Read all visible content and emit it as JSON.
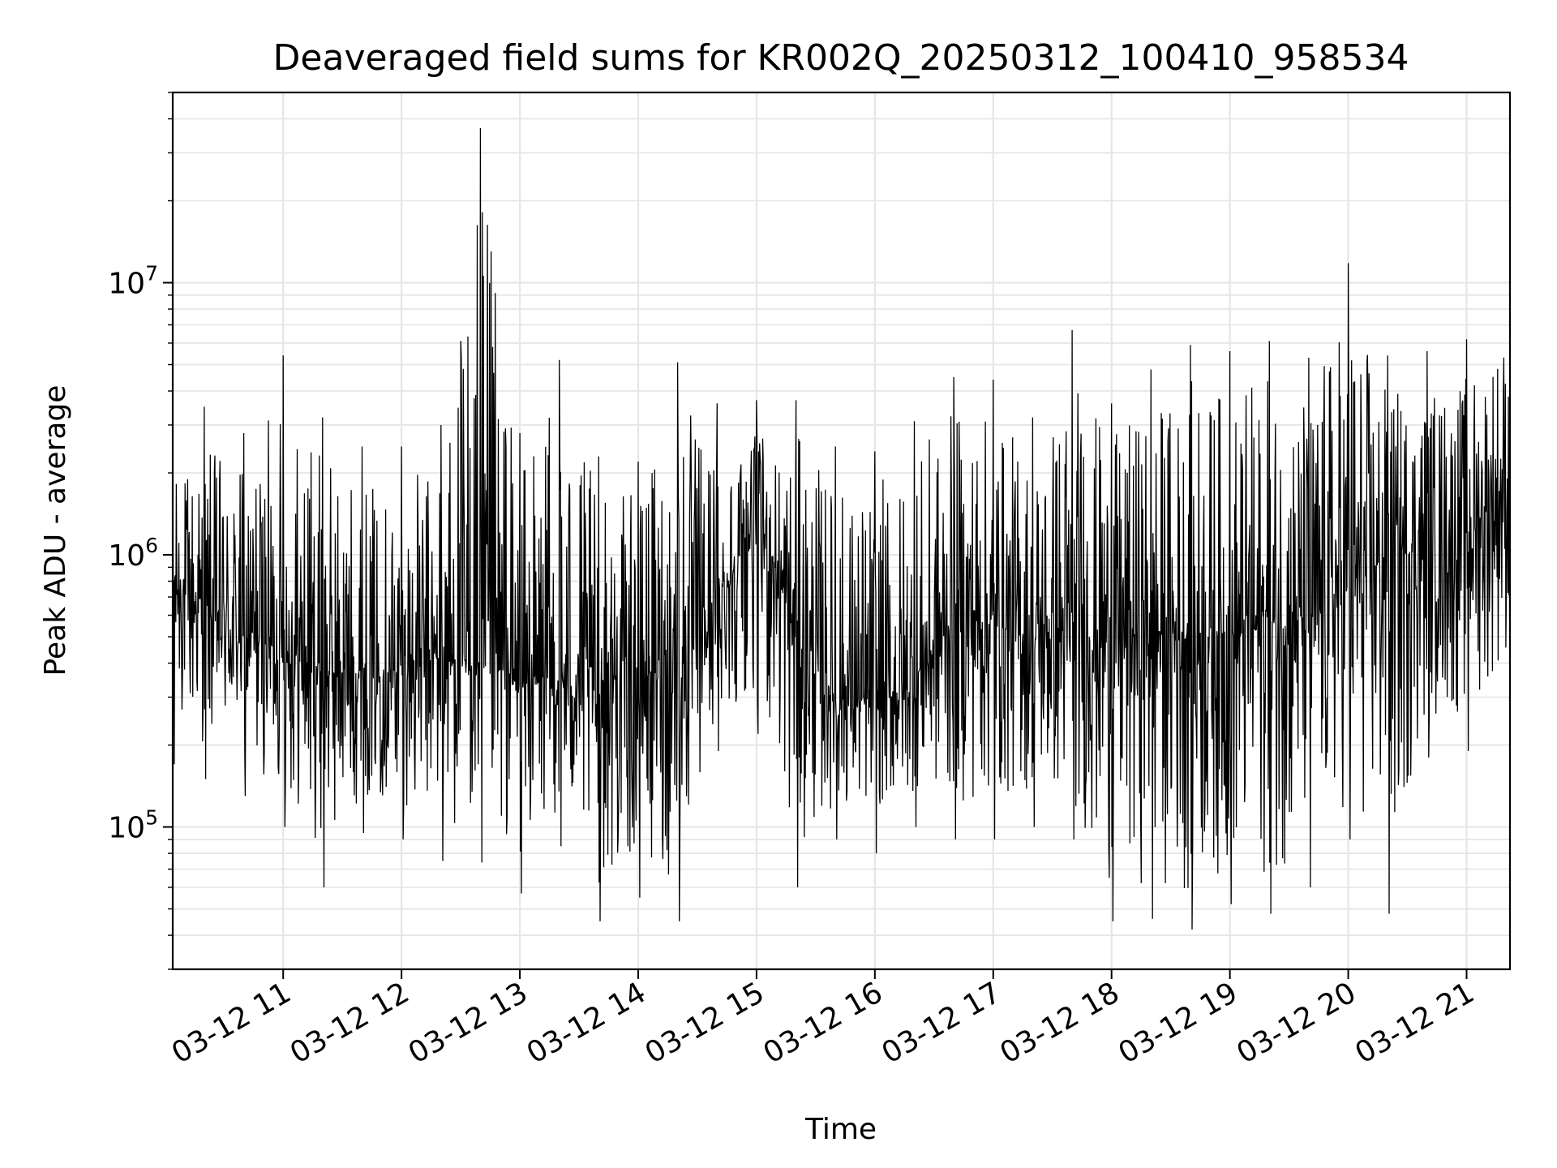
{
  "chart_data": {
    "type": "line",
    "title": "Deaveraged field sums for KR002Q_20250312_100410_958534",
    "xlabel": "Time",
    "ylabel": "Peak ADU - average",
    "y_scale": "log",
    "ylim": [
      30000,
      50000000
    ],
    "xlim": [
      "03-12 10:04",
      "03-12 21:22"
    ],
    "grid": true,
    "legend": "none",
    "line_color": "#000000",
    "x_ticks": [
      "03-12 11",
      "03-12 12",
      "03-12 13",
      "03-12 14",
      "03-12 15",
      "03-12 16",
      "03-12 17",
      "03-12 18",
      "03-12 19",
      "03-12 20",
      "03-12 21"
    ],
    "y_ticks": [
      {
        "base": "10",
        "exp": "5",
        "value": 100000
      },
      {
        "base": "10",
        "exp": "6",
        "value": 1000000
      },
      {
        "base": "10",
        "exp": "7",
        "value": 10000000
      }
    ],
    "series": [
      {
        "x": [
          "03-12 10:04",
          "03-12 10:20",
          "03-12 10:40",
          "03-12 11:00",
          "03-12 11:20",
          "03-12 11:40",
          "03-12 12:00",
          "03-12 12:20",
          "03-12 12:40",
          "03-12 13:00",
          "03-12 13:20",
          "03-12 13:40",
          "03-12 14:00",
          "03-12 14:20",
          "03-12 14:40",
          "03-12 15:00",
          "03-12 15:20",
          "03-12 15:40",
          "03-12 16:00",
          "03-12 16:20",
          "03-12 16:40",
          "03-12 17:00",
          "03-12 17:20",
          "03-12 17:40",
          "03-12 18:00",
          "03-12 18:20",
          "03-12 18:40",
          "03-12 19:00",
          "03-12 19:20",
          "03-12 19:40",
          "03-12 20:00",
          "03-12 20:20",
          "03-12 20:40",
          "03-12 21:00",
          "03-12 21:22"
        ],
        "median": [
          800000,
          600000,
          500000,
          450000,
          380000,
          350000,
          380000,
          420000,
          400000,
          350000,
          330000,
          340000,
          360000,
          380000,
          600000,
          1500000,
          500000,
          300000,
          280000,
          330000,
          600000,
          550000,
          500000,
          480000,
          520000,
          530000,
          500000,
          500000,
          560000,
          600000,
          750000,
          1000000,
          1100000,
          1200000,
          1800000
        ],
        "high": [
          2500000,
          3500000,
          2800000,
          5400000,
          3200000,
          2500000,
          2500000,
          3000000,
          37000000,
          2800000,
          5200000,
          2300000,
          2200000,
          5100000,
          3600000,
          3700000,
          3700000,
          2500000,
          2400000,
          3100000,
          4500000,
          4400000,
          3200000,
          6700000,
          3600000,
          4800000,
          5900000,
          5600000,
          6100000,
          5300000,
          11800000,
          5400000,
          5600000,
          6200000,
          10000000
        ],
        "low": [
          170000,
          150000,
          130000,
          100000,
          60000,
          95000,
          90000,
          75000,
          74000,
          57000,
          85000,
          45000,
          55000,
          45000,
          190000,
          220000,
          60000,
          90000,
          80000,
          100000,
          90000,
          90000,
          100000,
          90000,
          45000,
          46000,
          42000,
          52000,
          48000,
          60000,
          90000,
          48000,
          180000,
          190000,
          330000
        ]
      }
    ]
  }
}
